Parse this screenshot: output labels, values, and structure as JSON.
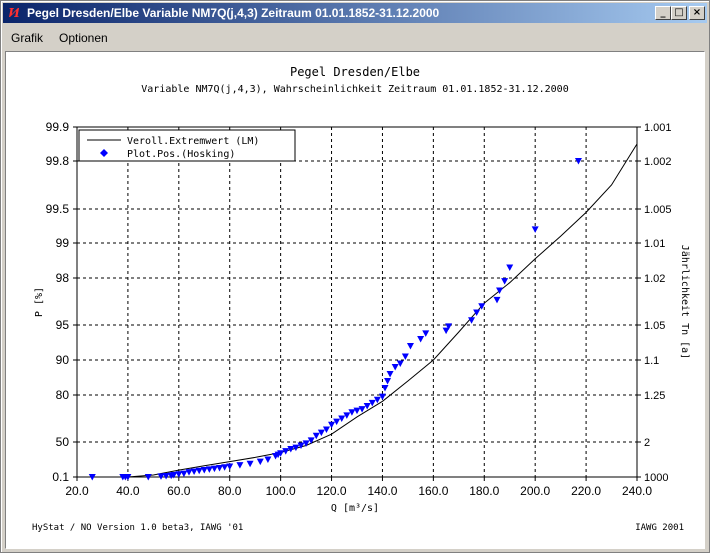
{
  "window": {
    "title": "Pegel Dresden/Elbe Variable NM7Q(j,4,3) Zeitraum 01.01.1852-31.12.2000",
    "controls": {
      "minimize": "_",
      "maximize": "□",
      "close": "×"
    }
  },
  "menu": {
    "items": [
      "Grafik",
      "Optionen"
    ]
  },
  "chart_data": {
    "type": "scatter",
    "title": "Pegel Dresden/Elbe",
    "subtitle": "Variable NM7Q(j,4,3), Wahrscheinlichkeit Zeitraum 01.01.1852-31.12.2000",
    "xlabel": "Q [m³/s]",
    "ylabel": "P [%]",
    "y2label": "Jährlichkeit Tn [a]",
    "xlim": [
      20,
      240
    ],
    "x_ticks": [
      "20.0",
      "40.0",
      "60.0",
      "80.0",
      "100.0",
      "120.0",
      "140.0",
      "160.0",
      "180.0",
      "200.0",
      "220.0",
      "240.0"
    ],
    "y_ticks": [
      "99.9",
      "99.8",
      "99.5",
      "99",
      "98",
      "95",
      "90",
      "80",
      "50",
      "0.1"
    ],
    "y2_ticks": [
      "1.001",
      "1.002",
      "1.005",
      "1.01",
      "1.02",
      "1.05",
      "1.1",
      "1.25",
      "2",
      "1000"
    ],
    "grid": true,
    "legend_position": "top-left",
    "series": [
      {
        "name": "Veroll.Extremwert (LM)",
        "type": "line",
        "color": "#000000",
        "points": [
          [
            20,
            0.1
          ],
          [
            30,
            0.1
          ],
          [
            40,
            0.1
          ],
          [
            50,
            3
          ],
          [
            60,
            10
          ],
          [
            70,
            16
          ],
          [
            80,
            22
          ],
          [
            90,
            28
          ],
          [
            100,
            35
          ],
          [
            110,
            45
          ],
          [
            120,
            55
          ],
          [
            130,
            66
          ],
          [
            140,
            76
          ],
          [
            150,
            84
          ],
          [
            160,
            90
          ],
          [
            170,
            94
          ],
          [
            180,
            96.4
          ],
          [
            190,
            97.7
          ],
          [
            200,
            98.55
          ],
          [
            210,
            99.1
          ],
          [
            220,
            99.45
          ],
          [
            230,
            99.65
          ],
          [
            240,
            99.85
          ]
        ]
      },
      {
        "name": "Plot.Pos.(Hosking)",
        "type": "scatter",
        "color": "#0000ff",
        "points": [
          [
            26,
            0.1
          ],
          [
            38,
            0.1
          ],
          [
            39,
            0.1
          ],
          [
            40,
            0.1
          ],
          [
            48,
            0.1
          ],
          [
            53,
            1
          ],
          [
            55,
            1.5
          ],
          [
            57,
            2
          ],
          [
            58,
            3
          ],
          [
            60,
            4
          ],
          [
            62,
            5
          ],
          [
            64,
            7
          ],
          [
            66,
            8
          ],
          [
            68,
            9
          ],
          [
            70,
            10
          ],
          [
            72,
            11
          ],
          [
            74,
            12
          ],
          [
            76,
            13
          ],
          [
            78,
            14
          ],
          [
            80,
            15
          ],
          [
            84,
            17
          ],
          [
            88,
            19
          ],
          [
            92,
            22
          ],
          [
            95,
            25
          ],
          [
            98,
            30
          ],
          [
            99,
            32
          ],
          [
            100,
            34
          ],
          [
            102,
            37
          ],
          [
            104,
            40
          ],
          [
            106,
            42
          ],
          [
            108,
            45
          ],
          [
            110,
            48
          ],
          [
            112,
            51
          ],
          [
            114,
            54
          ],
          [
            116,
            56
          ],
          [
            118,
            58
          ],
          [
            120,
            61
          ],
          [
            122,
            63
          ],
          [
            124,
            65
          ],
          [
            126,
            67
          ],
          [
            128,
            69
          ],
          [
            130,
            70
          ],
          [
            132,
            71
          ],
          [
            134,
            73
          ],
          [
            136,
            75
          ],
          [
            138,
            77
          ],
          [
            140,
            79
          ],
          [
            141,
            82
          ],
          [
            142,
            84
          ],
          [
            143,
            86
          ],
          [
            145,
            88
          ],
          [
            147,
            89
          ],
          [
            149,
            90.5
          ],
          [
            151,
            92
          ],
          [
            155,
            93
          ],
          [
            157,
            93.8
          ],
          [
            165,
            94.2
          ],
          [
            166,
            94.8
          ],
          [
            175,
            95.3
          ],
          [
            177,
            95.8
          ],
          [
            179,
            96.2
          ],
          [
            185,
            96.6
          ],
          [
            186,
            97.2
          ],
          [
            188,
            97.8
          ],
          [
            190,
            98.3
          ],
          [
            200,
            99.2
          ],
          [
            217,
            99.8
          ]
        ]
      }
    ]
  },
  "footer": {
    "left": "HyStat / NO Version 1.0 beta3, IAWG '01",
    "right": "IAWG 2001"
  }
}
